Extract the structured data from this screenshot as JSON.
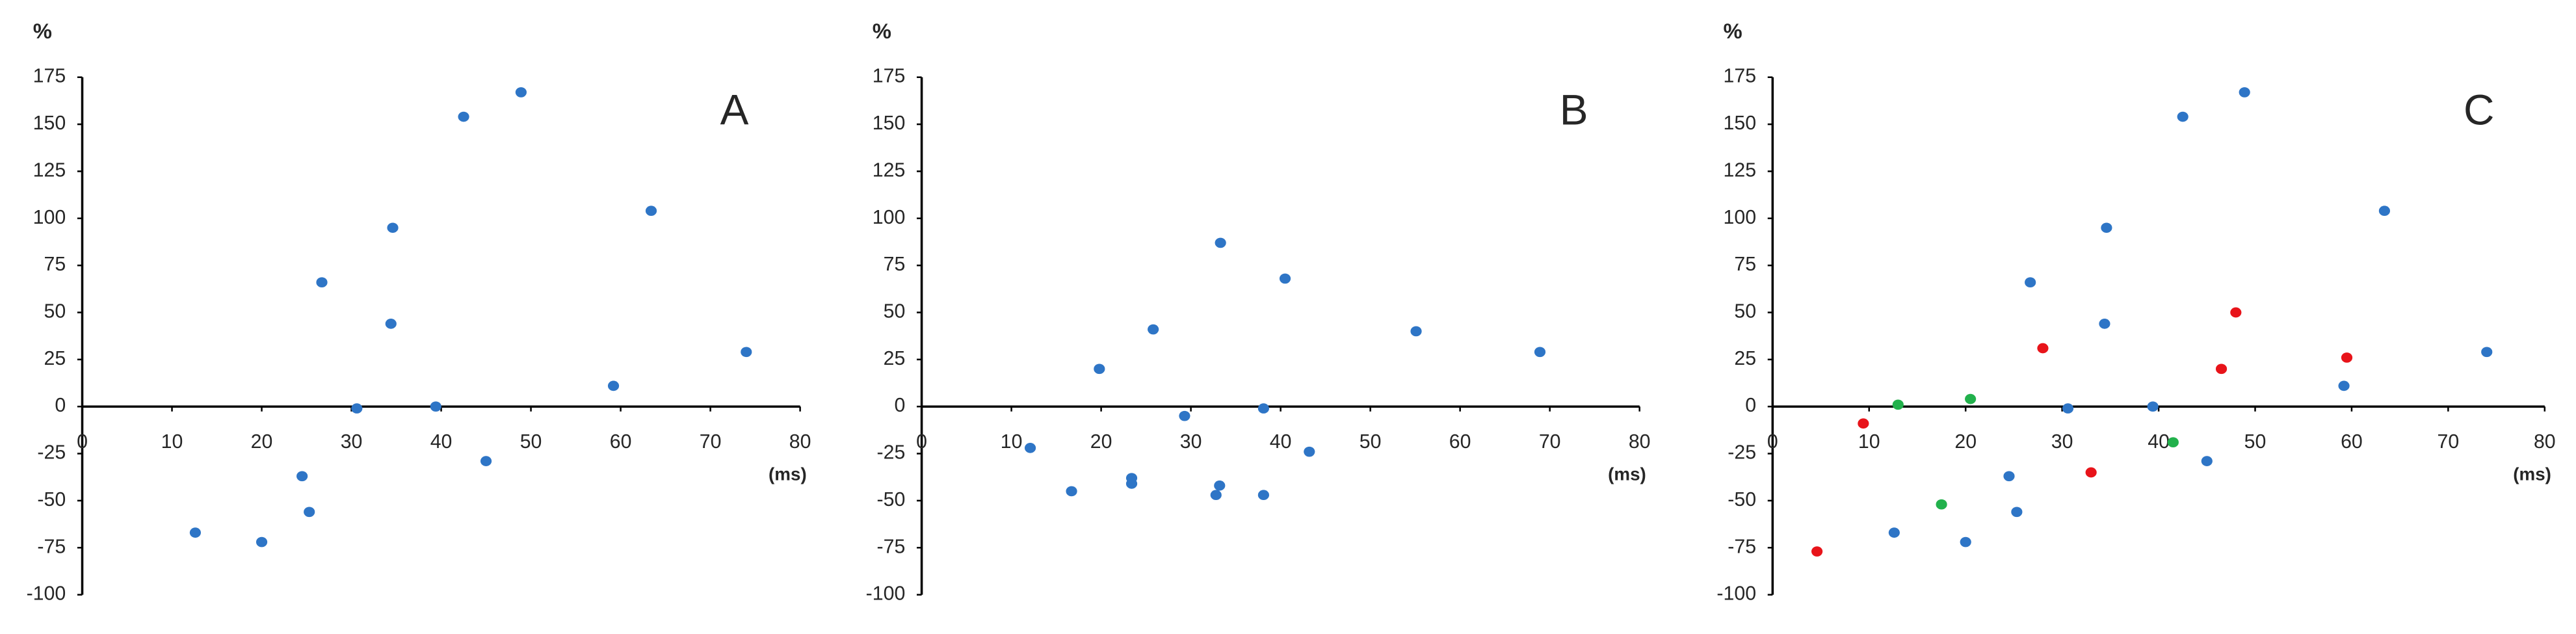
{
  "chart_data": [
    {
      "type": "scatter",
      "panel_label": "A",
      "y_label": "%",
      "x_label": "(ms)",
      "xlim": [
        0,
        80
      ],
      "ylim": [
        -100,
        175
      ],
      "xticks": [
        0,
        10,
        20,
        30,
        40,
        50,
        60,
        70,
        80
      ],
      "yticks": [
        -100,
        -75,
        -50,
        -25,
        0,
        25,
        50,
        75,
        100,
        125,
        150,
        175
      ],
      "series": [
        {
          "color": "#2e75c6",
          "x": [
            12.6,
            20,
            24.5,
            25.3,
            26.7,
            30.6,
            34.6,
            34.4,
            39.4,
            42.5,
            45,
            48.9,
            59.2,
            63.4,
            74
          ],
          "values": [
            -67,
            -72,
            -37,
            -56,
            66,
            -1,
            95,
            44,
            0,
            154,
            -29,
            167,
            11,
            104,
            29
          ]
        }
      ]
    },
    {
      "type": "scatter",
      "panel_label": "B",
      "y_label": "%",
      "x_label": "(ms)",
      "xlim": [
        0,
        80
      ],
      "ylim": [
        -100,
        175
      ],
      "xticks": [
        0,
        10,
        20,
        30,
        40,
        50,
        60,
        70,
        80
      ],
      "yticks": [
        -100,
        -75,
        -50,
        -25,
        0,
        25,
        50,
        75,
        100,
        125,
        150,
        175
      ],
      "series": [
        {
          "color": "#2e75c6",
          "x": [
            12.1,
            16.7,
            19.8,
            23.4,
            23.4,
            25.8,
            29.3,
            32.8,
            33.2,
            33.3,
            38.1,
            38.1,
            40.5,
            43.2,
            55.1,
            68.9
          ],
          "values": [
            -22,
            -45,
            20,
            -38,
            -41,
            41,
            -5,
            -47,
            -42,
            87,
            -1,
            -47,
            68,
            -24,
            40,
            29
          ]
        }
      ]
    },
    {
      "type": "scatter",
      "panel_label": "C",
      "y_label": "%",
      "x_label": "(ms)",
      "xlim": [
        0,
        80
      ],
      "ylim": [
        -100,
        175
      ],
      "xticks": [
        0,
        10,
        20,
        30,
        40,
        50,
        60,
        70,
        80
      ],
      "yticks": [
        -100,
        -75,
        -50,
        -25,
        0,
        25,
        50,
        75,
        100,
        125,
        150,
        175
      ],
      "series": [
        {
          "color": "#2e75c6",
          "x": [
            12.6,
            20,
            24.5,
            25.3,
            26.7,
            30.6,
            34.6,
            34.4,
            39.4,
            42.5,
            45,
            48.9,
            59.2,
            63.4,
            74
          ],
          "values": [
            -67,
            -72,
            -37,
            -56,
            66,
            -1,
            95,
            44,
            0,
            154,
            -29,
            167,
            11,
            104,
            29
          ]
        },
        {
          "color": "#e8141a",
          "x": [
            4.6,
            9.4,
            28,
            33,
            46.5,
            48,
            59.5
          ],
          "values": [
            -77,
            -9,
            31,
            -35,
            20,
            50,
            26
          ]
        },
        {
          "color": "#22b14c",
          "x": [
            13,
            17.5,
            20.5,
            41.5
          ],
          "values": [
            1,
            -52,
            4,
            -19
          ]
        }
      ]
    }
  ]
}
